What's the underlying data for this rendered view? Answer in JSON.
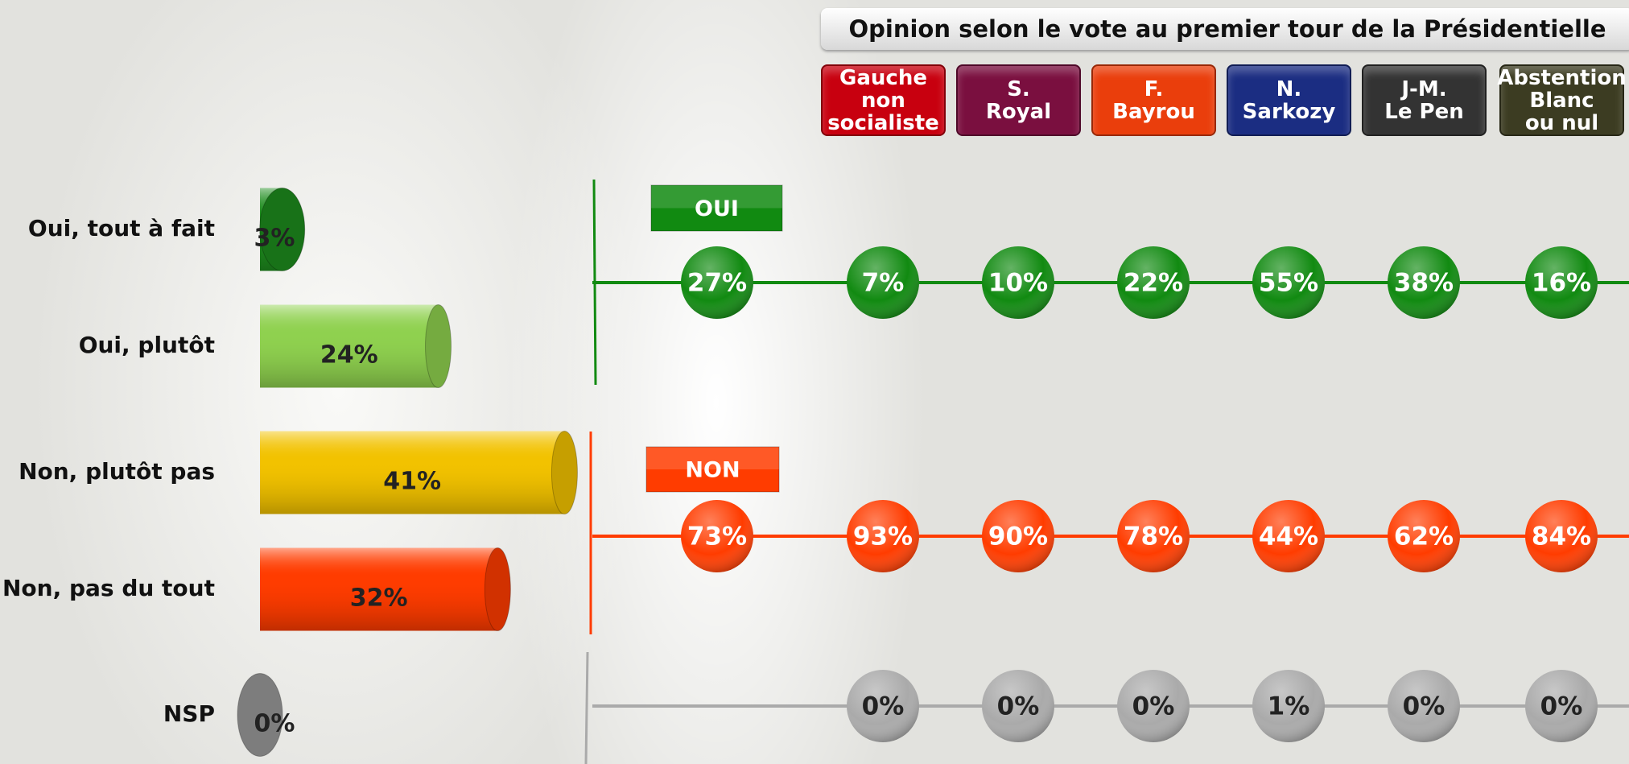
{
  "chart_data": [
    {
      "type": "bar",
      "orientation": "horizontal",
      "categories": [
        "Oui, tout à fait",
        "Oui, plutôt",
        "Non, plutôt pas",
        "Non, pas du tout",
        "NSP"
      ],
      "values": [
        3,
        24,
        41,
        32,
        0
      ],
      "value_labels": [
        "3%",
        "24%",
        "41%",
        "32%",
        "0%"
      ],
      "colors": [
        "#1e8c1e",
        "#8fd14f",
        "#f2c200",
        "#ff3c00",
        "#999999"
      ]
    },
    {
      "type": "dot-matrix",
      "title": "Opinion selon le vote au premier tour de la Présidentielle",
      "columns": [
        null,
        "Gauche\nnon\nsocialiste",
        "S.\nRoyal",
        "F.\nBayrou",
        "N.\nSarkozy",
        "J-M.\nLe Pen",
        "Abstention\nBlanc\nou nul"
      ],
      "column_colors": [
        null,
        "#c8000f",
        "#7a0f3f",
        "#ea3e0c",
        "#1b2d82",
        "#333333",
        "#3c3c22"
      ],
      "rows": [
        {
          "name": "OUI",
          "color": "#118a11",
          "values": [
            27,
            7,
            10,
            22,
            55,
            38,
            16
          ],
          "value_labels": [
            "27%",
            "7%",
            "10%",
            "22%",
            "55%",
            "38%",
            "16%"
          ]
        },
        {
          "name": "NON",
          "color": "#ff3c00",
          "values": [
            73,
            93,
            90,
            78,
            44,
            62,
            84
          ],
          "value_labels": [
            "73%",
            "93%",
            "90%",
            "78%",
            "44%",
            "62%",
            "84%"
          ]
        },
        {
          "color": "#aaaaaa",
          "values": [
            null,
            0,
            0,
            0,
            1,
            0,
            0
          ],
          "value_labels": [
            null,
            "0%",
            "0%",
            "0%",
            "1%",
            "0%",
            "0%"
          ]
        }
      ]
    }
  ]
}
